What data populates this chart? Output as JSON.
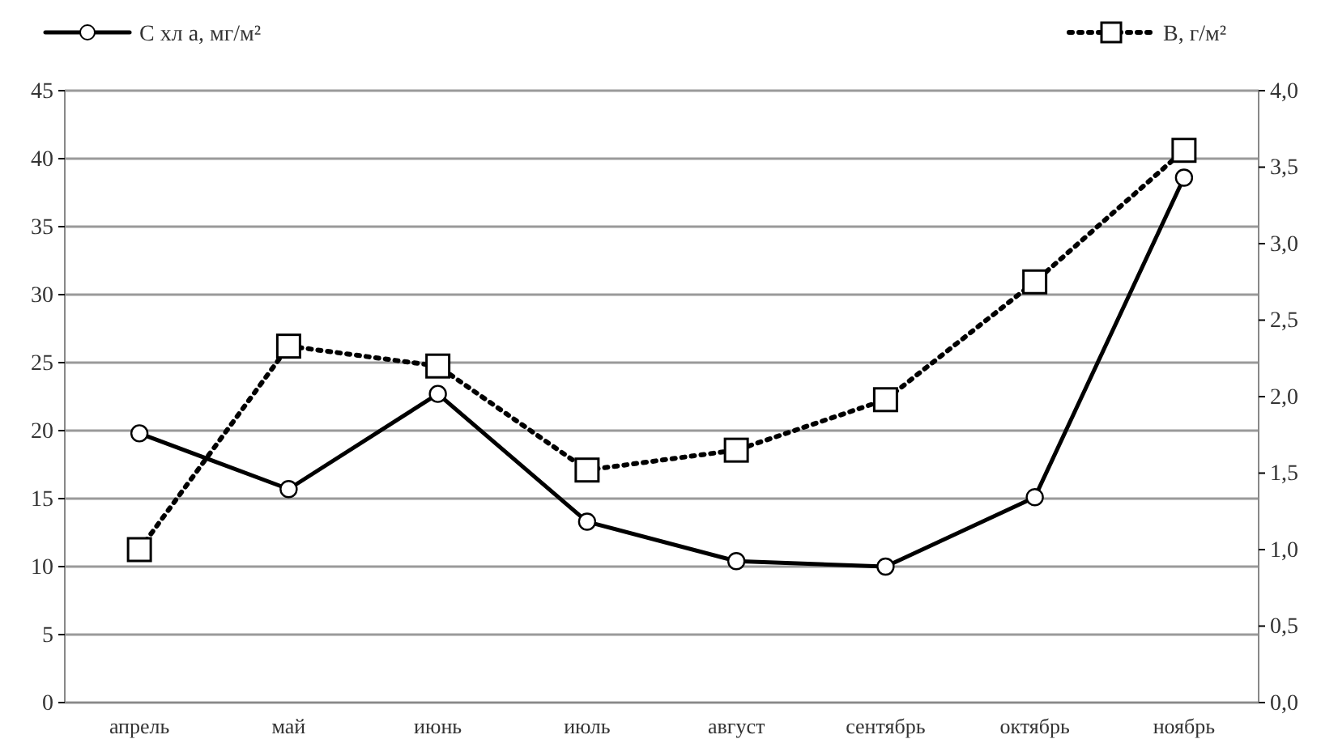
{
  "chart_data": {
    "type": "line",
    "categories": [
      "апрель",
      "май",
      "июнь",
      "июль",
      "август",
      "сентябрь",
      "октябрь",
      "ноябрь"
    ],
    "series": [
      {
        "name": "C хл а, мг/м²",
        "color": "#000000",
        "marker": "circle",
        "line_style": "solid",
        "values": [
          19.8,
          15.7,
          22.7,
          13.3,
          10.4,
          10.0,
          15.1,
          38.6
        ]
      },
      {
        "name": "B, г/м²",
        "color": "#000000",
        "marker": "square",
        "line_style": "dotted",
        "axis": "y2",
        "values": [
          1.0,
          2.33,
          2.2,
          1.52,
          1.65,
          1.98,
          2.75,
          3.61
        ]
      }
    ],
    "ylim": [
      0,
      45
    ],
    "yticks": [
      0,
      5,
      10,
      15,
      20,
      25,
      30,
      35,
      40,
      45
    ],
    "y2lim": [
      0,
      4
    ],
    "y2ticks": [
      {
        "value": 0,
        "label": "0,0"
      },
      {
        "value": 0.5,
        "label": "0,5"
      },
      {
        "value": 1,
        "label": "1,0"
      },
      {
        "value": 1.5,
        "label": "1,5"
      },
      {
        "value": 2,
        "label": "2,0"
      },
      {
        "value": 2.5,
        "label": "2,5"
      },
      {
        "value": 3,
        "label": "3,0"
      },
      {
        "value": 3.5,
        "label": "3,5"
      },
      {
        "value": 4,
        "label": "4,0"
      }
    ],
    "grid": "y",
    "legend": "top"
  }
}
